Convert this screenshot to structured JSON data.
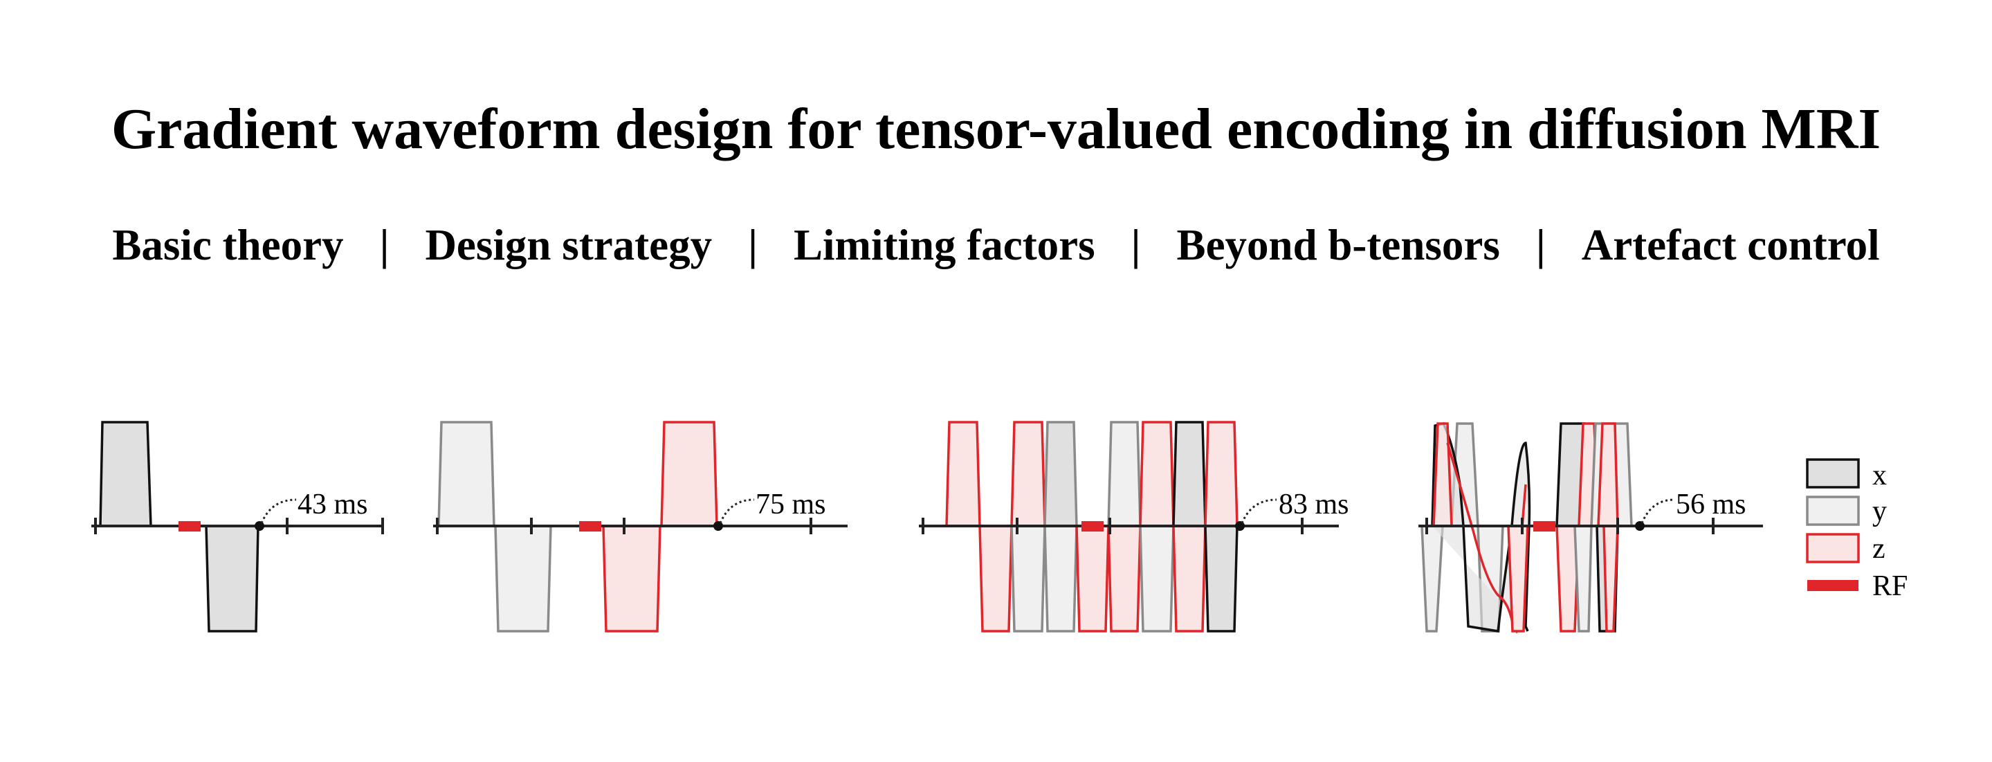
{
  "title": "Gradient waveform design for tensor-valued encoding in diffusion MRI",
  "nav": {
    "items": [
      "Basic theory",
      "Design strategy",
      "Limiting factors",
      "Beyond b-tensors",
      "Artefact control"
    ],
    "separator": "|"
  },
  "panels": [
    {
      "duration_label": "43 ms"
    },
    {
      "duration_label": "75 ms"
    },
    {
      "duration_label": "83 ms"
    },
    {
      "duration_label": "56 ms"
    }
  ],
  "legend": {
    "items": [
      {
        "label": "x",
        "stroke": "#111111",
        "fill": "#e0e0e0"
      },
      {
        "label": "y",
        "stroke": "#8a8a8a",
        "fill": "#f0f0f0"
      },
      {
        "label": "z",
        "stroke": "#e0252b",
        "fill": "#fbe4e4"
      },
      {
        "label": "RF",
        "color": "#e0252b"
      }
    ]
  },
  "colors": {
    "x_stroke": "#111111",
    "x_fill": "#e0e0e0",
    "y_stroke": "#8a8a8a",
    "y_fill": "#f0f0f0",
    "z_stroke": "#e0252b",
    "z_fill": "#fbe4e4",
    "rf": "#e0252b",
    "axis": "#222222"
  }
}
